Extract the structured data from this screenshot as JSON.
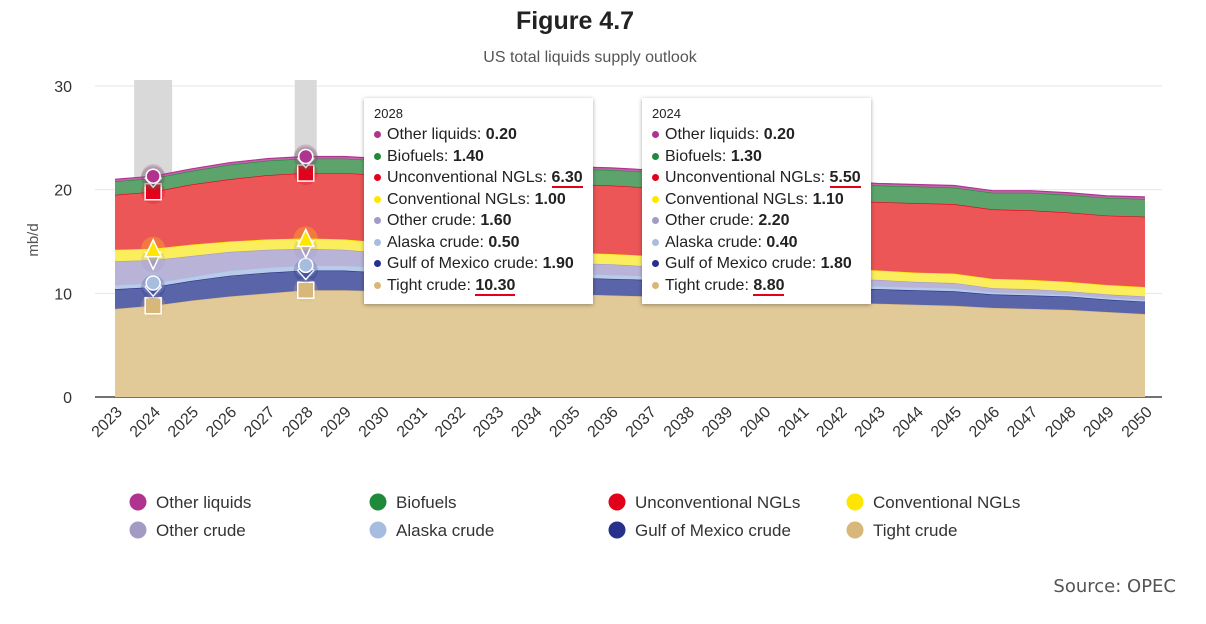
{
  "chart_data": {
    "type": "area",
    "stacked": true,
    "title": "Figure 4.7",
    "subtitle": "US total liquids supply outlook",
    "ylabel": "mb/d",
    "xlabel": "",
    "ylim": [
      0,
      30
    ],
    "yticks": [
      0,
      10,
      20,
      30
    ],
    "grid": true,
    "legend_position": "bottom",
    "categories": [
      "2023",
      "2024",
      "2025",
      "2026",
      "2027",
      "2028",
      "2029",
      "2030",
      "2031",
      "2032",
      "2033",
      "2034",
      "2035",
      "2036",
      "2037",
      "2038",
      "2039",
      "2040",
      "2041",
      "2042",
      "2043",
      "2044",
      "2045",
      "2046",
      "2047",
      "2048",
      "2049",
      "2050"
    ],
    "series": [
      {
        "name": "Tight crude",
        "color": "#d8b77a",
        "fill": "#e1ca98",
        "marker": "square",
        "values": [
          8.5,
          8.8,
          9.3,
          9.7,
          10.0,
          10.3,
          10.3,
          10.2,
          10.1,
          10.0,
          10.0,
          9.9,
          9.9,
          9.8,
          9.7,
          9.6,
          9.5,
          9.4,
          9.2,
          9.1,
          9.0,
          8.9,
          8.8,
          8.6,
          8.5,
          8.4,
          8.2,
          8.0
        ]
      },
      {
        "name": "Gulf of Mexico crude",
        "color": "#27318b",
        "fill": "#5a64a8",
        "marker": "diamond",
        "values": [
          1.9,
          1.8,
          1.9,
          2.0,
          2.0,
          1.9,
          1.9,
          1.8,
          1.8,
          1.7,
          1.7,
          1.7,
          1.6,
          1.6,
          1.6,
          1.5,
          1.5,
          1.5,
          1.4,
          1.4,
          1.4,
          1.4,
          1.4,
          1.3,
          1.3,
          1.3,
          1.2,
          1.2
        ]
      },
      {
        "name": "Alaska crude",
        "color": "#a7bde0",
        "fill": "#b9cbe8",
        "marker": "circle",
        "values": [
          0.4,
          0.4,
          0.4,
          0.5,
          0.5,
          0.5,
          0.5,
          0.5,
          0.5,
          0.4,
          0.4,
          0.4,
          0.4,
          0.4,
          0.4,
          0.4,
          0.3,
          0.3,
          0.3,
          0.3,
          0.3,
          0.3,
          0.3,
          0.2,
          0.2,
          0.2,
          0.2,
          0.2
        ]
      },
      {
        "name": "Other crude",
        "color": "#a49bc4",
        "fill": "#bab3d8",
        "marker": "triangle-down",
        "values": [
          2.3,
          2.2,
          2.0,
          1.8,
          1.7,
          1.6,
          1.5,
          1.4,
          1.3,
          1.2,
          1.2,
          1.1,
          1.0,
          1.0,
          0.9,
          0.9,
          0.8,
          0.8,
          0.7,
          0.6,
          0.6,
          0.5,
          0.5,
          0.4,
          0.4,
          0.3,
          0.3,
          0.3
        ]
      },
      {
        "name": "Conventional NGLs",
        "color": "#ffe600",
        "fill": "#fbee5c",
        "marker": "triangle-up",
        "values": [
          1.1,
          1.1,
          1.1,
          1.0,
          1.0,
          1.0,
          1.0,
          1.0,
          1.0,
          1.0,
          1.0,
          1.0,
          1.0,
          1.0,
          1.0,
          1.0,
          1.0,
          1.0,
          1.0,
          1.0,
          0.9,
          0.9,
          0.9,
          0.9,
          0.9,
          0.9,
          0.9,
          0.9
        ]
      },
      {
        "name": "Unconventional NGLs",
        "color": "#e3001b",
        "fill": "#ec5656",
        "marker": "square",
        "values": [
          5.3,
          5.5,
          5.8,
          6.0,
          6.2,
          6.3,
          6.4,
          6.5,
          6.5,
          6.6,
          6.6,
          6.6,
          6.6,
          6.6,
          6.6,
          6.6,
          6.6,
          6.6,
          6.6,
          6.6,
          6.6,
          6.7,
          6.7,
          6.7,
          6.7,
          6.7,
          6.7,
          6.8
        ]
      },
      {
        "name": "Biofuels",
        "color": "#1f8a3a",
        "fill": "#5ca46c",
        "marker": "diamond",
        "values": [
          1.3,
          1.3,
          1.3,
          1.4,
          1.4,
          1.4,
          1.4,
          1.4,
          1.4,
          1.5,
          1.5,
          1.5,
          1.5,
          1.5,
          1.5,
          1.5,
          1.5,
          1.6,
          1.6,
          1.6,
          1.6,
          1.6,
          1.6,
          1.6,
          1.7,
          1.7,
          1.7,
          1.7
        ]
      },
      {
        "name": "Other liquids",
        "color": "#b0338f",
        "fill": "#c366ab",
        "marker": "circle",
        "values": [
          0.2,
          0.2,
          0.2,
          0.2,
          0.2,
          0.2,
          0.2,
          0.2,
          0.2,
          0.2,
          0.2,
          0.2,
          0.2,
          0.2,
          0.2,
          0.2,
          0.2,
          0.2,
          0.2,
          0.2,
          0.2,
          0.2,
          0.2,
          0.2,
          0.2,
          0.2,
          0.2,
          0.2
        ]
      }
    ],
    "legend": [
      "Other liquids",
      "Biofuels",
      "Unconventional NGLs",
      "Conventional NGLs",
      "Other crude",
      "Alaska crude",
      "Gulf of Mexico crude",
      "Tight crude"
    ],
    "highlighted": [
      "2024",
      "2028"
    ]
  },
  "tooltips": [
    {
      "year": "2024",
      "rows": [
        {
          "label": "Other liquids: ",
          "value": "0.20",
          "color": "#b0338f"
        },
        {
          "label": "Biofuels: ",
          "value": "1.30",
          "color": "#1f8a3a"
        },
        {
          "label": "Unconventional NGLs: ",
          "value": "5.50",
          "color": "#e3001b",
          "underline": true
        },
        {
          "label": "Conventional NGLs: ",
          "value": "1.10",
          "color": "#ffe600"
        },
        {
          "label": "Other crude: ",
          "value": "2.20",
          "color": "#a49bc4"
        },
        {
          "label": "Alaska crude: ",
          "value": "0.40",
          "color": "#a7bde0"
        },
        {
          "label": "Gulf of Mexico crude: ",
          "value": "1.80",
          "color": "#27318b"
        },
        {
          "label": "Tight crude: ",
          "value": "8.80",
          "color": "#d8b77a",
          "underline": true
        }
      ]
    },
    {
      "year": "2028",
      "rows": [
        {
          "label": "Other liquids: ",
          "value": "0.20",
          "color": "#b0338f"
        },
        {
          "label": "Biofuels: ",
          "value": "1.40",
          "color": "#1f8a3a"
        },
        {
          "label": "Unconventional NGLs: ",
          "value": "6.30",
          "color": "#e3001b",
          "underline": true
        },
        {
          "label": "Conventional NGLs: ",
          "value": "1.00",
          "color": "#ffe600"
        },
        {
          "label": "Other crude: ",
          "value": "1.60",
          "color": "#a49bc4"
        },
        {
          "label": "Alaska crude: ",
          "value": "0.50",
          "color": "#a7bde0"
        },
        {
          "label": "Gulf of Mexico crude: ",
          "value": "1.90",
          "color": "#27318b"
        },
        {
          "label": "Tight crude: ",
          "value": "10.30",
          "color": "#d8b77a",
          "underline": true
        }
      ]
    }
  ],
  "source": "Source: OPEC"
}
